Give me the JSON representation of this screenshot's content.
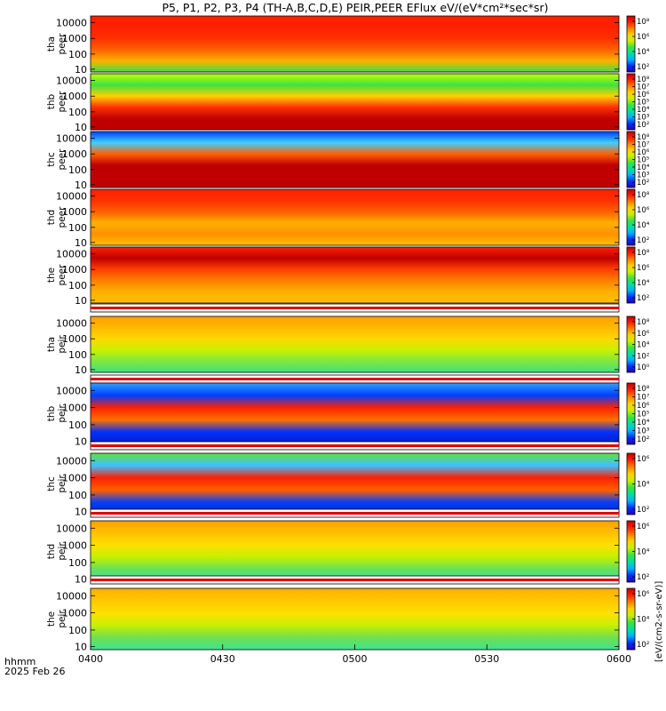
{
  "title": "P5, P1, P2, P3, P4 (TH-A,B,C,D,E) PEIR,PEER EFlux eV/(eV*cm²*sec*sr)",
  "x_axis": {
    "ticks": [
      "0400",
      "0430",
      "0500",
      "0530",
      "0600"
    ],
    "label_line1": "hhmm",
    "label_line2": "2025 Feb 26"
  },
  "colorbar_label": "[eV/(cm2-s-sr-eV)]",
  "colormap_stops": [
    "#2a00b0",
    "#0030ff",
    "#00b0ff",
    "#00e0a0",
    "#40e040",
    "#c8f000",
    "#ffd000",
    "#ff8000",
    "#ff2000",
    "#c00000"
  ],
  "chart_data": {
    "type": "heatmap",
    "x_range": [
      "0400",
      "0600"
    ],
    "panels": [
      {
        "name_line1": "tha",
        "name_line2": "peer",
        "y_ticks": [
          "10000",
          "1000",
          "100",
          "10"
        ],
        "cbar_ticks": [
          "10⁸",
          "10⁶",
          "10⁴",
          "10²"
        ],
        "flag_bar": false
      },
      {
        "name_line1": "thb",
        "name_line2": "peer",
        "y_ticks": [
          "10000",
          "1000",
          "100",
          "10"
        ],
        "cbar_ticks": [
          "10⁸",
          "10⁷",
          "10⁶",
          "10⁵",
          "10⁴",
          "10³",
          "10²"
        ],
        "flag_bar": false
      },
      {
        "name_line1": "thc",
        "name_line2": "peer",
        "y_ticks": [
          "10000",
          "1000",
          "100",
          "10"
        ],
        "cbar_ticks": [
          "10⁸",
          "10⁷",
          "10⁶",
          "10⁵",
          "10⁴",
          "10³",
          "10²"
        ],
        "flag_bar": false
      },
      {
        "name_line1": "thd",
        "name_line2": "peer",
        "y_ticks": [
          "10000",
          "1000",
          "100",
          "10"
        ],
        "cbar_ticks": [
          "10⁸",
          "10⁶",
          "10⁴",
          "10²"
        ],
        "flag_bar": false
      },
      {
        "name_line1": "the",
        "name_line2": "peer",
        "y_ticks": [
          "10000",
          "1000",
          "100",
          "10"
        ],
        "cbar_ticks": [
          "10⁸",
          "10⁶",
          "10⁴",
          "10²"
        ],
        "flag_bar": false
      },
      {
        "name_line1": "tha",
        "name_line2": "peir",
        "y_ticks": [
          "10000",
          "1000",
          "100",
          "10"
        ],
        "cbar_ticks": [
          "10⁸",
          "10⁶",
          "10⁴",
          "10²",
          "10⁰"
        ],
        "flag_bar": true
      },
      {
        "name_line1": "thb",
        "name_line2": "peir",
        "y_ticks": [
          "10000",
          "1000",
          "100",
          "10"
        ],
        "cbar_ticks": [
          "10⁸",
          "10⁷",
          "10⁶",
          "10⁵",
          "10⁴",
          "10³",
          "10²"
        ],
        "flag_bar": true
      },
      {
        "name_line1": "thc",
        "name_line2": "peir",
        "y_ticks": [
          "10000",
          "1000",
          "100",
          "10"
        ],
        "cbar_ticks": [
          "10⁶",
          "10⁴",
          "10²"
        ],
        "flag_bar": true
      },
      {
        "name_line1": "thd",
        "name_line2": "peir",
        "y_ticks": [
          "10000",
          "1000",
          "100",
          "10"
        ],
        "cbar_ticks": [
          "10⁶",
          "10⁴",
          "10²"
        ],
        "flag_bar": true
      },
      {
        "name_line1": "the",
        "name_line2": "peir",
        "y_ticks": [
          "10000",
          "1000",
          "100",
          "10"
        ],
        "cbar_ticks": [
          "10⁶",
          "10⁴",
          "10²"
        ],
        "flag_bar": true
      }
    ]
  }
}
